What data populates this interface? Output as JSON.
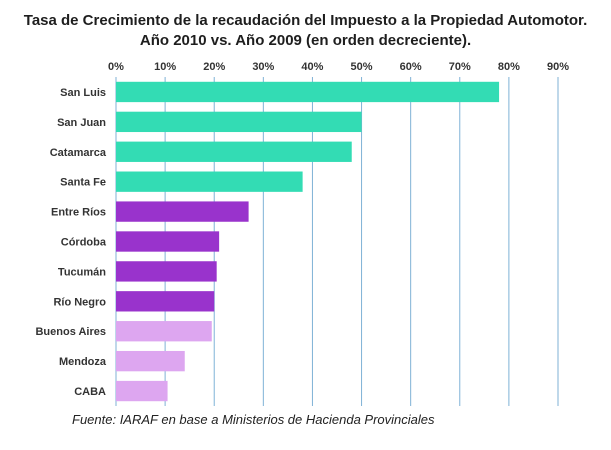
{
  "title_line1": "Tasa de Crecimiento de la recaudación del Impuesto a la Propiedad Automotor.",
  "title_line2": "Año 2010 vs. Año 2009 (en orden decreciente).",
  "source": "Fuente: IARAF en base a Ministerios de Hacienda Provinciales",
  "colors": {
    "teal": "#33dcb4",
    "purple": "#9933cc",
    "lilac": "#dda6f0",
    "grid": "#7fb2d6"
  },
  "chart_data": {
    "type": "bar",
    "orientation": "horizontal",
    "categories": [
      "San Luis",
      "San Juan",
      "Catamarca",
      "Santa Fe",
      "Entre Ríos",
      "Córdoba",
      "Tucumán",
      "Río Negro",
      "Buenos Aires",
      "Mendoza",
      "CABA"
    ],
    "values": [
      78,
      50,
      48,
      38,
      27,
      21,
      20.5,
      20,
      19.5,
      14,
      10.5
    ],
    "bar_colors": [
      "teal",
      "teal",
      "teal",
      "teal",
      "purple",
      "purple",
      "purple",
      "purple",
      "lilac",
      "lilac",
      "lilac"
    ],
    "xlim": [
      0,
      90
    ],
    "ticks": [
      "0%",
      "10%",
      "20%",
      "30%",
      "40%",
      "50%",
      "60%",
      "70%",
      "80%",
      "90%"
    ],
    "grid": true
  }
}
